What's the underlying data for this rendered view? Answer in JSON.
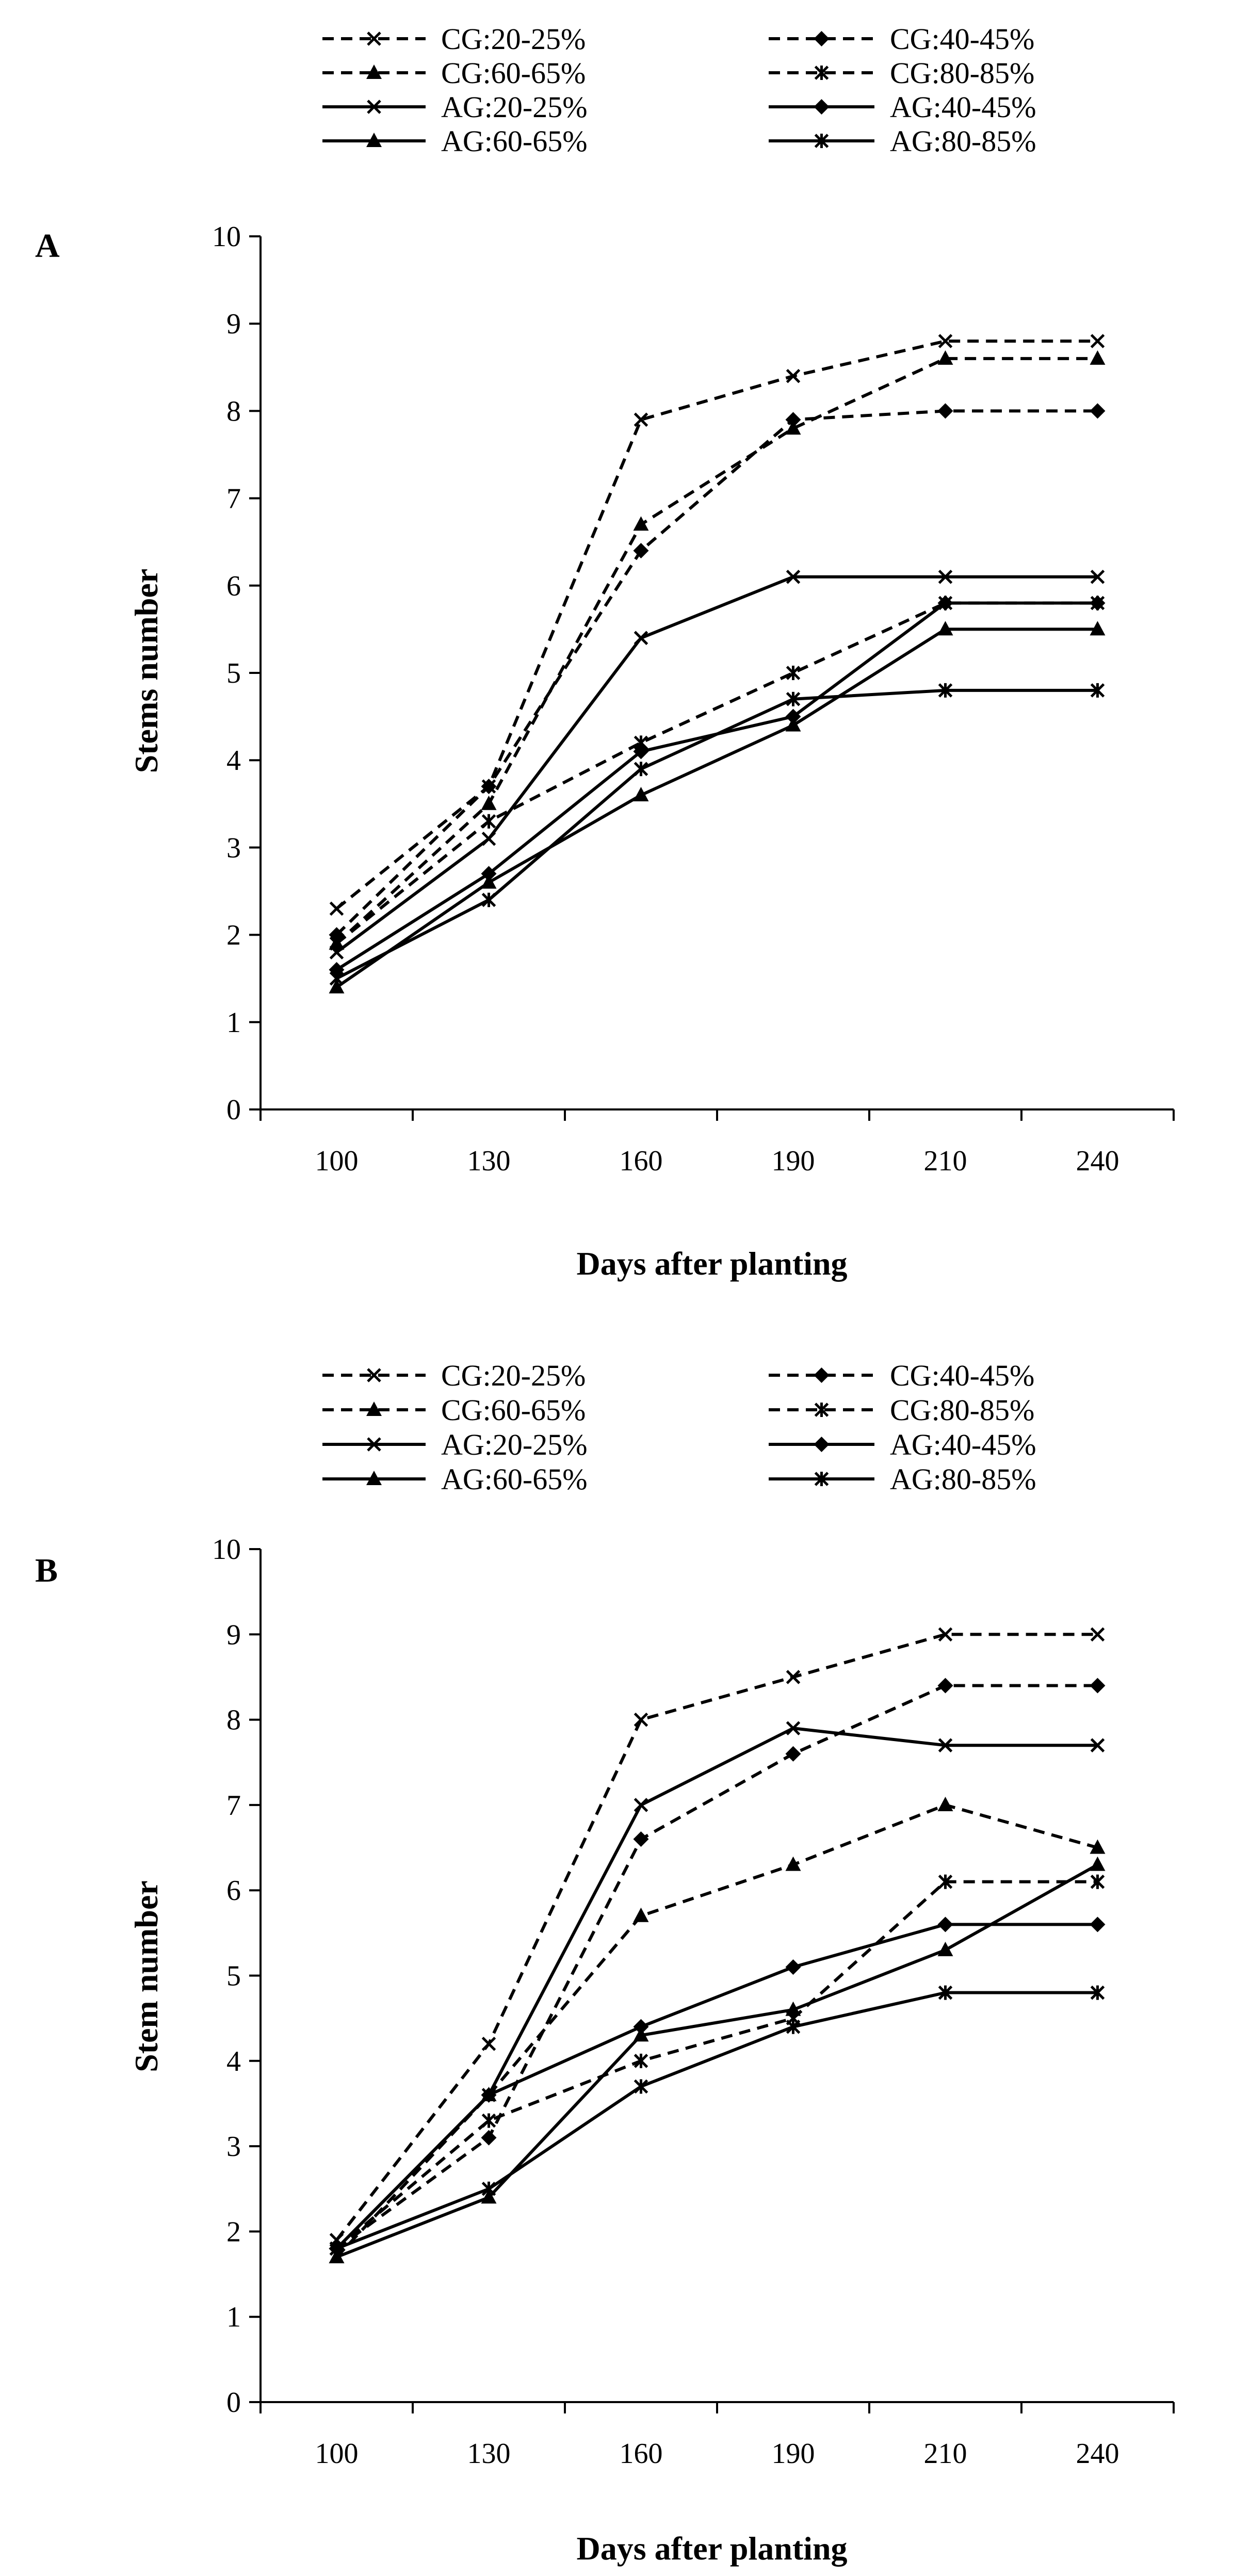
{
  "chart_data": [
    {
      "type": "line",
      "panel": "A",
      "xlabel": "Days after planting",
      "ylabel": "Stems number",
      "categories": [
        "100",
        "130",
        "160",
        "190",
        "210",
        "240"
      ],
      "ylim": [
        0,
        10
      ],
      "yticks": [
        "0",
        "1",
        "2",
        "3",
        "4",
        "5",
        "6",
        "7",
        "8",
        "9",
        "10"
      ],
      "grid": false,
      "legend_position": "top",
      "series": [
        {
          "name": "CG:20-25%",
          "style": "dashed",
          "marker": "x",
          "values": [
            2.3,
            3.7,
            7.9,
            8.4,
            8.8,
            8.8
          ]
        },
        {
          "name": "CG:40-45%",
          "style": "dashed",
          "marker": "diamond",
          "values": [
            2.0,
            3.7,
            6.4,
            7.9,
            8.0,
            8.0
          ]
        },
        {
          "name": "CG:60-65%",
          "style": "dashed",
          "marker": "triangle",
          "values": [
            1.9,
            3.5,
            6.7,
            7.8,
            8.6,
            8.6
          ]
        },
        {
          "name": "CG:80-85%",
          "style": "dashed",
          "marker": "star",
          "values": [
            1.9,
            3.3,
            4.2,
            5.0,
            5.8,
            5.8
          ]
        },
        {
          "name": "AG:20-25%",
          "style": "solid",
          "marker": "x",
          "values": [
            1.8,
            3.1,
            5.4,
            6.1,
            6.1,
            6.1
          ]
        },
        {
          "name": "AG:40-45%",
          "style": "solid",
          "marker": "diamond",
          "values": [
            1.6,
            2.7,
            4.1,
            4.5,
            5.8,
            5.8
          ]
        },
        {
          "name": "AG:60-65%",
          "style": "solid",
          "marker": "triangle",
          "values": [
            1.4,
            2.6,
            3.6,
            4.4,
            5.5,
            5.5
          ]
        },
        {
          "name": "AG:80-85%",
          "style": "solid",
          "marker": "star",
          "values": [
            1.5,
            2.4,
            3.9,
            4.7,
            4.8,
            4.8
          ]
        }
      ]
    },
    {
      "type": "line",
      "panel": "B",
      "xlabel": "Days after planting",
      "ylabel": "Stem number",
      "categories": [
        "100",
        "130",
        "160",
        "190",
        "210",
        "240"
      ],
      "ylim": [
        0,
        10
      ],
      "yticks": [
        "0",
        "1",
        "2",
        "3",
        "4",
        "5",
        "6",
        "7",
        "8",
        "9",
        "10"
      ],
      "grid": false,
      "legend_position": "top",
      "series": [
        {
          "name": "CG:20-25%",
          "style": "dashed",
          "marker": "x",
          "values": [
            1.9,
            4.2,
            8.0,
            8.5,
            9.0,
            9.0
          ]
        },
        {
          "name": "CG:40-45%",
          "style": "dashed",
          "marker": "diamond",
          "values": [
            1.8,
            3.1,
            6.6,
            7.6,
            8.4,
            8.4
          ]
        },
        {
          "name": "CG:60-65%",
          "style": "dashed",
          "marker": "triangle",
          "values": [
            1.7,
            3.6,
            5.7,
            6.3,
            7.0,
            6.5
          ]
        },
        {
          "name": "CG:80-85%",
          "style": "dashed",
          "marker": "star",
          "values": [
            1.8,
            3.3,
            4.0,
            4.5,
            6.1,
            6.1
          ]
        },
        {
          "name": "AG:20-25%",
          "style": "solid",
          "marker": "x",
          "values": [
            1.8,
            3.6,
            7.0,
            7.9,
            7.7,
            7.7
          ]
        },
        {
          "name": "AG:40-45%",
          "style": "solid",
          "marker": "diamond",
          "values": [
            1.8,
            3.6,
            4.4,
            5.1,
            5.6,
            5.6
          ]
        },
        {
          "name": "AG:60-65%",
          "style": "solid",
          "marker": "triangle",
          "values": [
            1.7,
            2.4,
            4.3,
            4.6,
            5.3,
            6.3
          ]
        },
        {
          "name": "AG:80-85%",
          "style": "solid",
          "marker": "star",
          "values": [
            1.8,
            2.5,
            3.7,
            4.4,
            4.8,
            4.8
          ]
        }
      ]
    }
  ]
}
